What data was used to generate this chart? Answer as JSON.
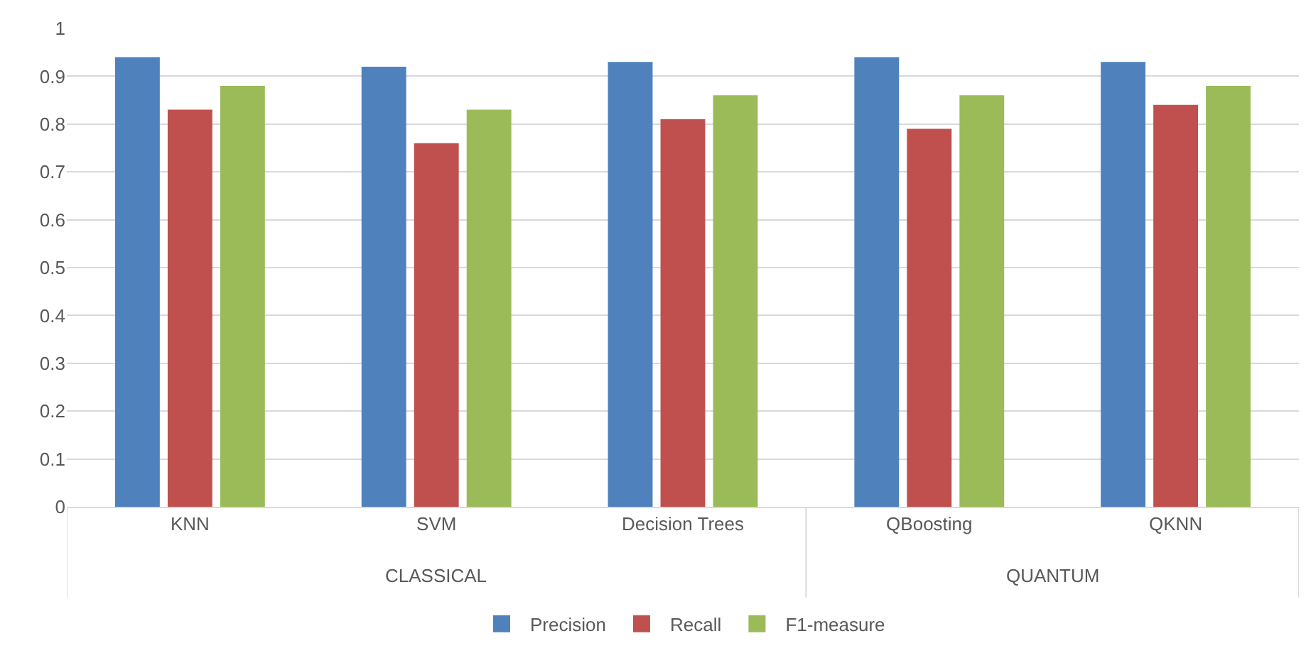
{
  "chart_data": {
    "type": "bar",
    "categories": [
      "KNN",
      "SVM",
      "Decision Trees",
      "QBoosting",
      "QKNN"
    ],
    "series": [
      {
        "name": "Precision",
        "color": "#4f81bd",
        "values": [
          0.94,
          0.92,
          0.93,
          0.94,
          0.93
        ]
      },
      {
        "name": "Recall",
        "color": "#c0504d",
        "values": [
          0.83,
          0.76,
          0.81,
          0.79,
          0.84
        ]
      },
      {
        "name": "F1-measure",
        "color": "#9bbb59",
        "values": [
          0.88,
          0.83,
          0.86,
          0.86,
          0.88
        ]
      }
    ],
    "annotations": [
      "CLASSICAL",
      "QUANTUM"
    ],
    "ylim": [
      0,
      1
    ],
    "yticks": [
      0,
      0.1,
      0.2,
      0.3,
      0.4,
      0.5,
      0.6,
      0.7,
      0.8,
      0.9,
      1
    ],
    "grid": "y",
    "legend": "bottom"
  }
}
